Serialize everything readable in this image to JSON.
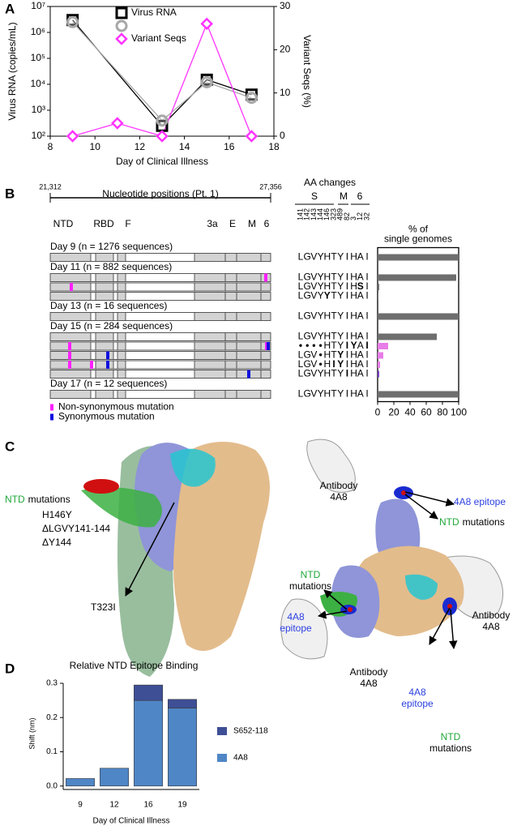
{
  "panel_labels": [
    "A",
    "B",
    "C",
    "D"
  ],
  "chart_data": [
    {
      "type": "line",
      "xlabel": "Day of Clinical Illness",
      "ylabel": "Virus RNA (copies/mL)",
      "y2label": "Variant Seqs (%)",
      "xlim": [
        8,
        18
      ],
      "xticks": [
        8,
        10,
        12,
        14,
        16,
        18
      ],
      "log_y": true,
      "ylim": [
        100,
        10000000
      ],
      "yticks": [
        {
          "value": 100,
          "label": "10²"
        },
        {
          "value": 1000,
          "label": "10³"
        },
        {
          "value": 10000,
          "label": "10⁴"
        },
        {
          "value": 100000,
          "label": "10⁵"
        },
        {
          "value": 1000000,
          "label": "10⁶"
        },
        {
          "value": 10000000,
          "label": "10⁷"
        }
      ],
      "y2lim": [
        0,
        30
      ],
      "y2ticks": [
        0,
        10,
        20,
        30
      ],
      "series": [
        {
          "name": "Virus RNA",
          "color": "#000000",
          "marker": "square",
          "x": [
            9,
            13,
            15,
            17
          ],
          "values": [
            3000000,
            250,
            15000,
            4000
          ]
        },
        {
          "color": "#a8a8a8",
          "marker": "circle",
          "x": [
            9,
            13,
            15,
            17
          ],
          "values": [
            2500000,
            400,
            12000,
            3000
          ]
        },
        {
          "name": "Variant Seqs",
          "color": "#ff33ff",
          "marker": "diamond",
          "axis": "y2",
          "x": [
            9,
            11,
            13,
            15,
            17
          ],
          "values": [
            0,
            3,
            0,
            26,
            0
          ]
        }
      ]
    },
    {
      "type": "hbar",
      "title_lines": [
        "% of",
        "single genomes"
      ],
      "values": [
        100,
        97,
        2,
        1,
        100,
        73,
        13,
        7,
        3,
        2,
        100
      ],
      "colors": [
        "#6e6e6e",
        "#6e6e6e",
        "#6e6e6e",
        "#6e6e6e",
        "#6e6e6e",
        "#6e6e6e",
        "#e87ce8",
        "#e87ce8",
        "#e87ce8",
        "#7a3fc8",
        "#6e6e6e"
      ],
      "xlim": [
        0,
        100
      ],
      "xticks": [
        0,
        20,
        40,
        60,
        80,
        100
      ]
    },
    {
      "type": "stacked_bar",
      "title": "Relative NTD Epitope Binding",
      "xlabel": "Day of Clinical Illness",
      "ylabel": "Shift (nm)",
      "categories": [
        "9",
        "12",
        "16",
        "19"
      ],
      "series": [
        {
          "name": "4A8",
          "color": "#4f86c6",
          "values": [
            0.022,
            0.052,
            0.25,
            0.228
          ]
        },
        {
          "name": "S652-118",
          "color": "#3e4f96",
          "values": [
            0,
            0,
            0.045,
            0.025
          ]
        }
      ],
      "ylim": [
        -0.01,
        0.3
      ],
      "yticks": [
        {
          "value": 0,
          "label": "0.0"
        },
        {
          "value": 0.1,
          "label": "0.1"
        },
        {
          "value": 0.2,
          "label": "0.2"
        },
        {
          "value": 0.3,
          "label": "0.3"
        }
      ]
    }
  ],
  "genome_panel": {
    "ruler_title": "Nucleotide positions (Pt. 1)",
    "ruler_start": "21,312",
    "ruler_end": "27,356",
    "regions": [
      "NTD",
      "RBD",
      "F",
      "3a",
      "E",
      "M",
      "6"
    ],
    "aa_title": "AA changes",
    "genes": [
      "S",
      "M",
      "6"
    ],
    "positions": [
      141,
      142,
      143,
      144,
      146,
      323,
      489,
      82,
      3,
      12,
      32
    ],
    "groups": [
      {
        "header": "Day 9 (n = 1276 sequences)",
        "rows": [
          {
            "aa": [
              "L",
              "G",
              "V",
              "Y",
              "H",
              "T",
              "Y",
              "I",
              "H",
              "A",
              "I"
            ],
            "colors": [
              "#000",
              "#000",
              "#000",
              "#000",
              "#000",
              "#000",
              "#000",
              "#000",
              "#000",
              "#000",
              "#000"
            ]
          }
        ]
      },
      {
        "header": "Day 11 (n = 882 sequences)",
        "rows": [
          {
            "aa": [
              "L",
              "G",
              "V",
              "Y",
              "H",
              "T",
              "Y",
              "I",
              "H",
              "A",
              "I"
            ],
            "colors": [
              "#000",
              "#000",
              "#000",
              "#000",
              "#000",
              "#000",
              "#000",
              "#000",
              "#000",
              "#000",
              "#000"
            ]
          },
          {
            "aa": [
              "L",
              "G",
              "V",
              "Y",
              "H",
              "T",
              "Y",
              "I",
              "H",
              "S",
              "I"
            ],
            "colors": [
              "#000",
              "#000",
              "#000",
              "#000",
              "#000",
              "#000",
              "#000",
              "#000",
              "#000",
              "#e020e0",
              "#000"
            ]
          },
          {
            "aa": [
              "L",
              "G",
              "V",
              "Y",
              "Y",
              "T",
              "Y",
              "I",
              "H",
              "A",
              "I"
            ],
            "colors": [
              "#000",
              "#000",
              "#000",
              "#000",
              "#e020e0",
              "#000",
              "#000",
              "#000",
              "#000",
              "#000",
              "#000"
            ]
          }
        ]
      },
      {
        "header": "Day 13 (n = 16 sequences)",
        "rows": [
          {
            "aa": [
              "L",
              "G",
              "V",
              "Y",
              "H",
              "T",
              "Y",
              "I",
              "H",
              "A",
              "I"
            ],
            "colors": [
              "#000",
              "#000",
              "#000",
              "#000",
              "#000",
              "#000",
              "#000",
              "#000",
              "#000",
              "#000",
              "#000"
            ]
          }
        ]
      },
      {
        "header": "Day 15 (n = 284 sequences)",
        "rows": [
          {
            "aa": [
              "L",
              "G",
              "V",
              "Y",
              "H",
              "T",
              "Y",
              "I",
              "H",
              "A",
              "I"
            ],
            "colors": [
              "#000",
              "#000",
              "#000",
              "#000",
              "#000",
              "#000",
              "#000",
              "#000",
              "#000",
              "#000",
              "#000"
            ]
          },
          {
            "aa": [
              "•",
              "•",
              "•",
              "•",
              "H",
              "T",
              "Y",
              "I",
              "Y",
              "A",
              "I"
            ],
            "colors": [
              "#e020e0",
              "#e020e0",
              "#e020e0",
              "#e020e0",
              "#000",
              "#000",
              "#000",
              "#e020e0",
              "#e020e0",
              "#000",
              "#2020e0"
            ]
          },
          {
            "aa": [
              "L",
              "G",
              "V",
              "•",
              "H",
              "T",
              "Y",
              "I",
              "H",
              "A",
              "I"
            ],
            "colors": [
              "#000",
              "#000",
              "#000",
              "#e020e0",
              "#000",
              "#000",
              "#2020e0",
              "#000",
              "#000",
              "#000",
              "#000"
            ]
          },
          {
            "aa": [
              "L",
              "G",
              "V",
              "•",
              "H",
              "I",
              "Y",
              "I",
              "H",
              "A",
              "I"
            ],
            "colors": [
              "#000",
              "#000",
              "#000",
              "#e020e0",
              "#000",
              "#e020e0",
              "#2020e0",
              "#000",
              "#000",
              "#000",
              "#000"
            ]
          },
          {
            "aa": [
              "L",
              "G",
              "V",
              "Y",
              "H",
              "T",
              "Y",
              "I",
              "H",
              "A",
              "I"
            ],
            "colors": [
              "#000",
              "#000",
              "#000",
              "#000",
              "#000",
              "#000",
              "#000",
              "#2020e0",
              "#000",
              "#000",
              "#000"
            ]
          }
        ]
      },
      {
        "header": "Day 17 (n = 12 sequences)",
        "rows": [
          {
            "aa": [
              "L",
              "G",
              "V",
              "Y",
              "H",
              "T",
              "Y",
              "I",
              "H",
              "A",
              "I"
            ],
            "colors": [
              "#000",
              "#000",
              "#000",
              "#000",
              "#000",
              "#000",
              "#000",
              "#000",
              "#000",
              "#000",
              "#000"
            ]
          }
        ]
      }
    ],
    "legend": [
      {
        "label": "Non-synonymous mutation",
        "color": "#ff20ff"
      },
      {
        "label": "Synonymous mutation",
        "color": "#1010e0"
      }
    ]
  },
  "structure": {
    "left": {
      "ntd": [
        "NTD",
        "mutations"
      ],
      "mutations": [
        "H146Y",
        "ΔLGVY141-144",
        "ΔY144"
      ],
      "site": "T323I"
    },
    "right": {
      "antibody": [
        [
          "Antibody",
          "4A8"
        ],
        [
          "Antibody",
          "4A8"
        ],
        [
          "Antibody",
          "4A8"
        ]
      ],
      "epitope": [
        [
          "4A8 epitope"
        ],
        [
          "4A8",
          "epitope"
        ],
        [
          "4A8",
          "epitope"
        ]
      ],
      "ntd": [
        [
          "NTD",
          "mutations"
        ],
        [
          "NTD",
          "mutations"
        ],
        [
          "NTD",
          "mutations"
        ]
      ]
    }
  }
}
